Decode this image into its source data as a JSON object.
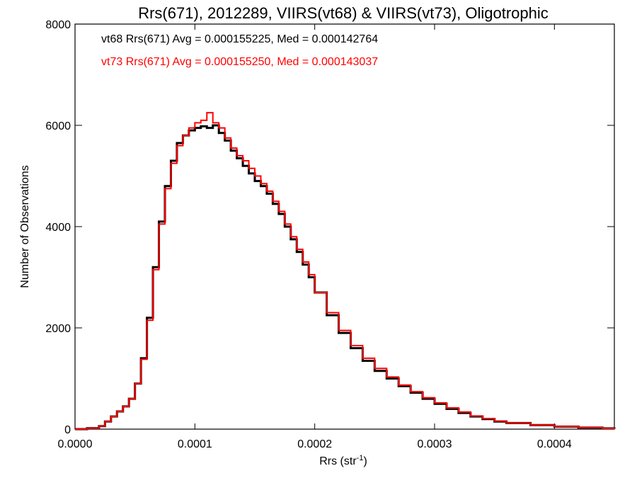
{
  "chart_data": {
    "type": "line",
    "style": "step-histogram",
    "title": "Rrs(671), 2012289, VIIRS(vt68) & VIIRS(vt73), Oligotrophic",
    "xlabel": "Rrs (str",
    "xlabel_sup": "-1",
    "xlabel_end": ")",
    "ylabel": "Number of Observations",
    "xlim": [
      0,
      0.00045
    ],
    "ylim": [
      0,
      8000
    ],
    "x_ticks": [
      0,
      0.0001,
      0.0002,
      0.0003,
      0.0004
    ],
    "x_tick_labels": [
      "0.0000",
      "0.0001",
      "0.0002",
      "0.0003",
      "0.0004"
    ],
    "y_ticks": [
      0,
      2000,
      4000,
      6000,
      8000
    ],
    "y_tick_labels": [
      "0",
      "2000",
      "4000",
      "6000",
      "8000"
    ],
    "grid": false,
    "annotations": [
      {
        "text": "vt68 Rrs(671) Avg = 0.000155225, Med = 0.000142764",
        "color": "#000000"
      },
      {
        "text": "vt73 Rrs(671) Avg = 0.000155250, Med = 0.000143037",
        "color": "#ff0000"
      }
    ],
    "series": [
      {
        "color": "#000000",
        "x": [
          0.0,
          1e-05,
          2e-05,
          2.5e-05,
          3e-05,
          3.5e-05,
          4e-05,
          4.5e-05,
          5e-05,
          5.5e-05,
          6e-05,
          6.5e-05,
          7e-05,
          7.5e-05,
          8e-05,
          8.5e-05,
          9e-05,
          9.5e-05,
          0.0001,
          0.000105,
          0.00011,
          0.000115,
          0.00012,
          0.000125,
          0.00013,
          0.000135,
          0.00014,
          0.000145,
          0.00015,
          0.000155,
          0.00016,
          0.000165,
          0.00017,
          0.000175,
          0.00018,
          0.000185,
          0.00019,
          0.000195,
          0.0002,
          0.00021,
          0.00022,
          0.00023,
          0.00024,
          0.00025,
          0.00026,
          0.00027,
          0.00028,
          0.00029,
          0.0003,
          0.00031,
          0.00032,
          0.00033,
          0.00034,
          0.00035,
          0.00036,
          0.00038,
          0.0004,
          0.00042,
          0.00044,
          0.00045
        ],
        "y": [
          0,
          20,
          60,
          150,
          250,
          350,
          450,
          600,
          900,
          1400,
          2200,
          3200,
          4100,
          4800,
          5300,
          5650,
          5800,
          5900,
          5950,
          5980,
          5950,
          6000,
          5850,
          5700,
          5500,
          5350,
          5200,
          5050,
          4900,
          4800,
          4650,
          4450,
          4250,
          4000,
          3750,
          3500,
          3250,
          3000,
          2700,
          2250,
          1900,
          1600,
          1350,
          1150,
          1000,
          850,
          720,
          600,
          500,
          400,
          320,
          250,
          200,
          150,
          120,
          80,
          50,
          30,
          15,
          5
        ]
      },
      {
        "color": "#ff0000",
        "x": [
          0.0,
          1e-05,
          2e-05,
          2.5e-05,
          3e-05,
          3.5e-05,
          4e-05,
          4.5e-05,
          5e-05,
          5.5e-05,
          6e-05,
          6.5e-05,
          7e-05,
          7.5e-05,
          8e-05,
          8.5e-05,
          9e-05,
          9.5e-05,
          0.0001,
          0.000105,
          0.00011,
          0.000115,
          0.00012,
          0.000125,
          0.00013,
          0.000135,
          0.00014,
          0.000145,
          0.00015,
          0.000155,
          0.00016,
          0.000165,
          0.00017,
          0.000175,
          0.00018,
          0.000185,
          0.00019,
          0.000195,
          0.0002,
          0.00021,
          0.00022,
          0.00023,
          0.00024,
          0.00025,
          0.00026,
          0.00027,
          0.00028,
          0.00029,
          0.0003,
          0.00031,
          0.00032,
          0.00033,
          0.00034,
          0.00035,
          0.00036,
          0.00038,
          0.0004,
          0.00042,
          0.00044,
          0.00045
        ],
        "y": [
          0,
          20,
          60,
          150,
          250,
          350,
          450,
          600,
          900,
          1380,
          2150,
          3150,
          4050,
          4750,
          5250,
          5600,
          5800,
          5950,
          6050,
          6100,
          6250,
          6050,
          5950,
          5750,
          5550,
          5400,
          5300,
          5150,
          5000,
          4850,
          4700,
          4500,
          4300,
          4050,
          3800,
          3550,
          3300,
          3050,
          2700,
          2300,
          1950,
          1650,
          1400,
          1200,
          1030,
          870,
          740,
          620,
          520,
          420,
          340,
          260,
          210,
          160,
          120,
          80,
          55,
          30,
          15,
          5
        ]
      }
    ]
  }
}
